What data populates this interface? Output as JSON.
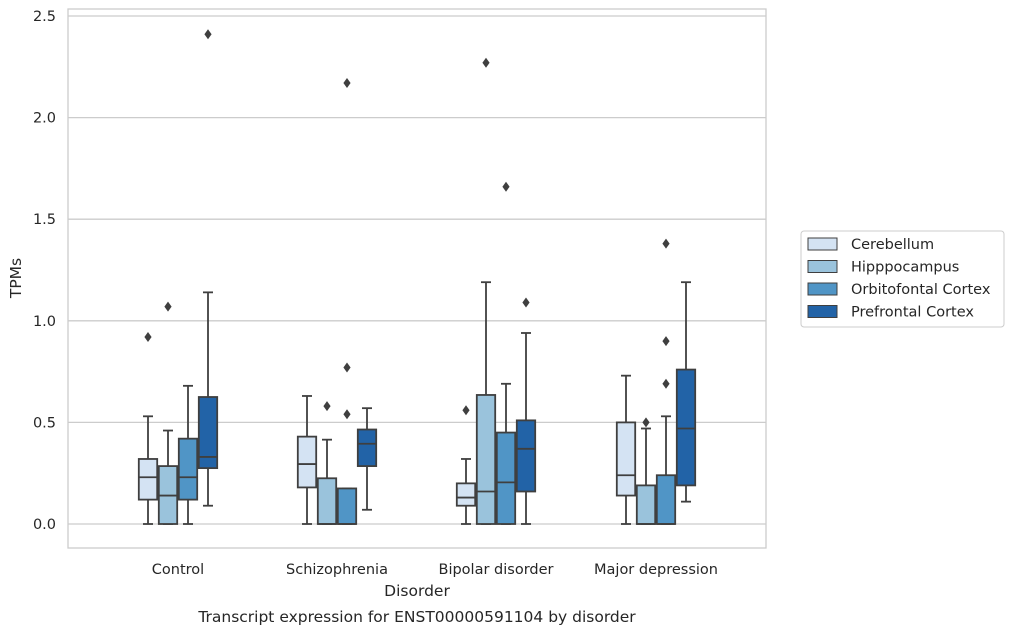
{
  "chart_data": {
    "type": "box",
    "caption": "Transcript expression for ENST00000591104 by disorder",
    "xlabel": "Disorder",
    "ylabel": "TPMs",
    "ylim": [
      -0.12,
      2.54
    ],
    "yticks": [
      0.0,
      0.5,
      1.0,
      1.5,
      2.0,
      2.5
    ],
    "ytick_labels": [
      "0.0",
      "0.5",
      "1.0",
      "1.5",
      "2.0",
      "2.5"
    ],
    "grid": "horizontal",
    "legend_position": "right, outside plot",
    "categories": [
      "Control",
      "Schizophrenia",
      "Bipolar disorder",
      "Major depression"
    ],
    "series": [
      {
        "name": "Cerebellum",
        "color": "#d4e3f3",
        "boxes": [
          {
            "whislo": 0.0,
            "q1": 0.12,
            "med": 0.23,
            "q3": 0.32,
            "whishi": 0.53,
            "fliers": [
              0.92
            ]
          },
          {
            "whislo": 0.0,
            "q1": 0.18,
            "med": 0.295,
            "q3": 0.43,
            "whishi": 0.63,
            "fliers": []
          },
          {
            "whislo": 0.0,
            "q1": 0.09,
            "med": 0.13,
            "q3": 0.2,
            "whishi": 0.32,
            "fliers": [
              0.56
            ]
          },
          {
            "whislo": 0.0,
            "q1": 0.14,
            "med": 0.24,
            "q3": 0.5,
            "whishi": 0.73,
            "fliers": []
          }
        ]
      },
      {
        "name": "Hipppocampus",
        "color": "#9ac3dc",
        "boxes": [
          {
            "whislo": 0.0,
            "q1": 0.0,
            "med": 0.14,
            "q3": 0.285,
            "whishi": 0.46,
            "fliers": [
              1.07
            ]
          },
          {
            "whislo": 0.0,
            "q1": 0.0,
            "med": 0.0,
            "q3": 0.225,
            "whishi": 0.415,
            "fliers": [
              0.58
            ]
          },
          {
            "whislo": 0.0,
            "q1": 0.0,
            "med": 0.16,
            "q3": 0.635,
            "whishi": 1.19,
            "fliers": [
              2.27
            ]
          },
          {
            "whislo": 0.0,
            "q1": 0.0,
            "med": 0.0,
            "q3": 0.19,
            "whishi": 0.47,
            "fliers": [
              0.5
            ]
          }
        ]
      },
      {
        "name": "Orbitofontal Cortex",
        "color": "#5095c6",
        "boxes": [
          {
            "whislo": 0.0,
            "q1": 0.12,
            "med": 0.23,
            "q3": 0.42,
            "whishi": 0.68,
            "fliers": []
          },
          {
            "whislo": 0.0,
            "q1": 0.0,
            "med": 0.0,
            "q3": 0.175,
            "whishi": 0.175,
            "fliers": [
              0.54,
              0.77,
              2.17
            ]
          },
          {
            "whislo": 0.0,
            "q1": 0.0,
            "med": 0.205,
            "q3": 0.45,
            "whishi": 0.69,
            "fliers": [
              1.66
            ]
          },
          {
            "whislo": 0.0,
            "q1": 0.0,
            "med": 0.0,
            "q3": 0.24,
            "whishi": 0.53,
            "fliers": [
              0.69,
              0.9,
              1.38
            ]
          }
        ]
      },
      {
        "name": "Prefrontal Cortex",
        "color": "#2263a7",
        "boxes": [
          {
            "whislo": 0.09,
            "q1": 0.275,
            "med": 0.33,
            "q3": 0.625,
            "whishi": 1.14,
            "fliers": [
              2.41
            ]
          },
          {
            "whislo": 0.07,
            "q1": 0.285,
            "med": 0.395,
            "q3": 0.465,
            "whishi": 0.57,
            "fliers": []
          },
          {
            "whislo": 0.0,
            "q1": 0.16,
            "med": 0.37,
            "q3": 0.51,
            "whishi": 0.94,
            "fliers": [
              1.09
            ]
          },
          {
            "whislo": 0.11,
            "q1": 0.19,
            "med": 0.47,
            "q3": 0.76,
            "whishi": 1.19,
            "fliers": []
          }
        ]
      }
    ]
  }
}
